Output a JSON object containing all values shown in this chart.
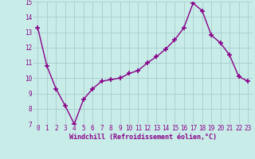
{
  "x": [
    0,
    1,
    2,
    3,
    4,
    5,
    6,
    7,
    8,
    9,
    10,
    11,
    12,
    13,
    14,
    15,
    16,
    17,
    18,
    19,
    20,
    21,
    22,
    23
  ],
  "y": [
    13.3,
    10.8,
    9.3,
    8.2,
    7.0,
    8.6,
    9.3,
    9.8,
    9.9,
    10.0,
    10.3,
    10.5,
    11.0,
    11.4,
    11.9,
    12.5,
    13.3,
    14.9,
    14.4,
    12.8,
    12.3,
    11.5,
    10.1,
    9.8
  ],
  "line_color": "#880088",
  "marker": "+",
  "marker_size": 4,
  "marker_lw": 1.2,
  "background_color": "#c8ece8",
  "grid_color": "#aacccc",
  "xlabel": "Windchill (Refroidissement éolien,°C)",
  "xlabel_color": "#880088",
  "xlabel_fontsize": 6.0,
  "tick_color": "#880088",
  "tick_fontsize": 5.5,
  "ylim": [
    7,
    15
  ],
  "yticks": [
    7,
    8,
    9,
    10,
    11,
    12,
    13,
    14,
    15
  ],
  "xticks": [
    0,
    1,
    2,
    3,
    4,
    5,
    6,
    7,
    8,
    9,
    10,
    11,
    12,
    13,
    14,
    15,
    16,
    17,
    18,
    19,
    20,
    21,
    22,
    23
  ],
  "line_width": 1.0
}
